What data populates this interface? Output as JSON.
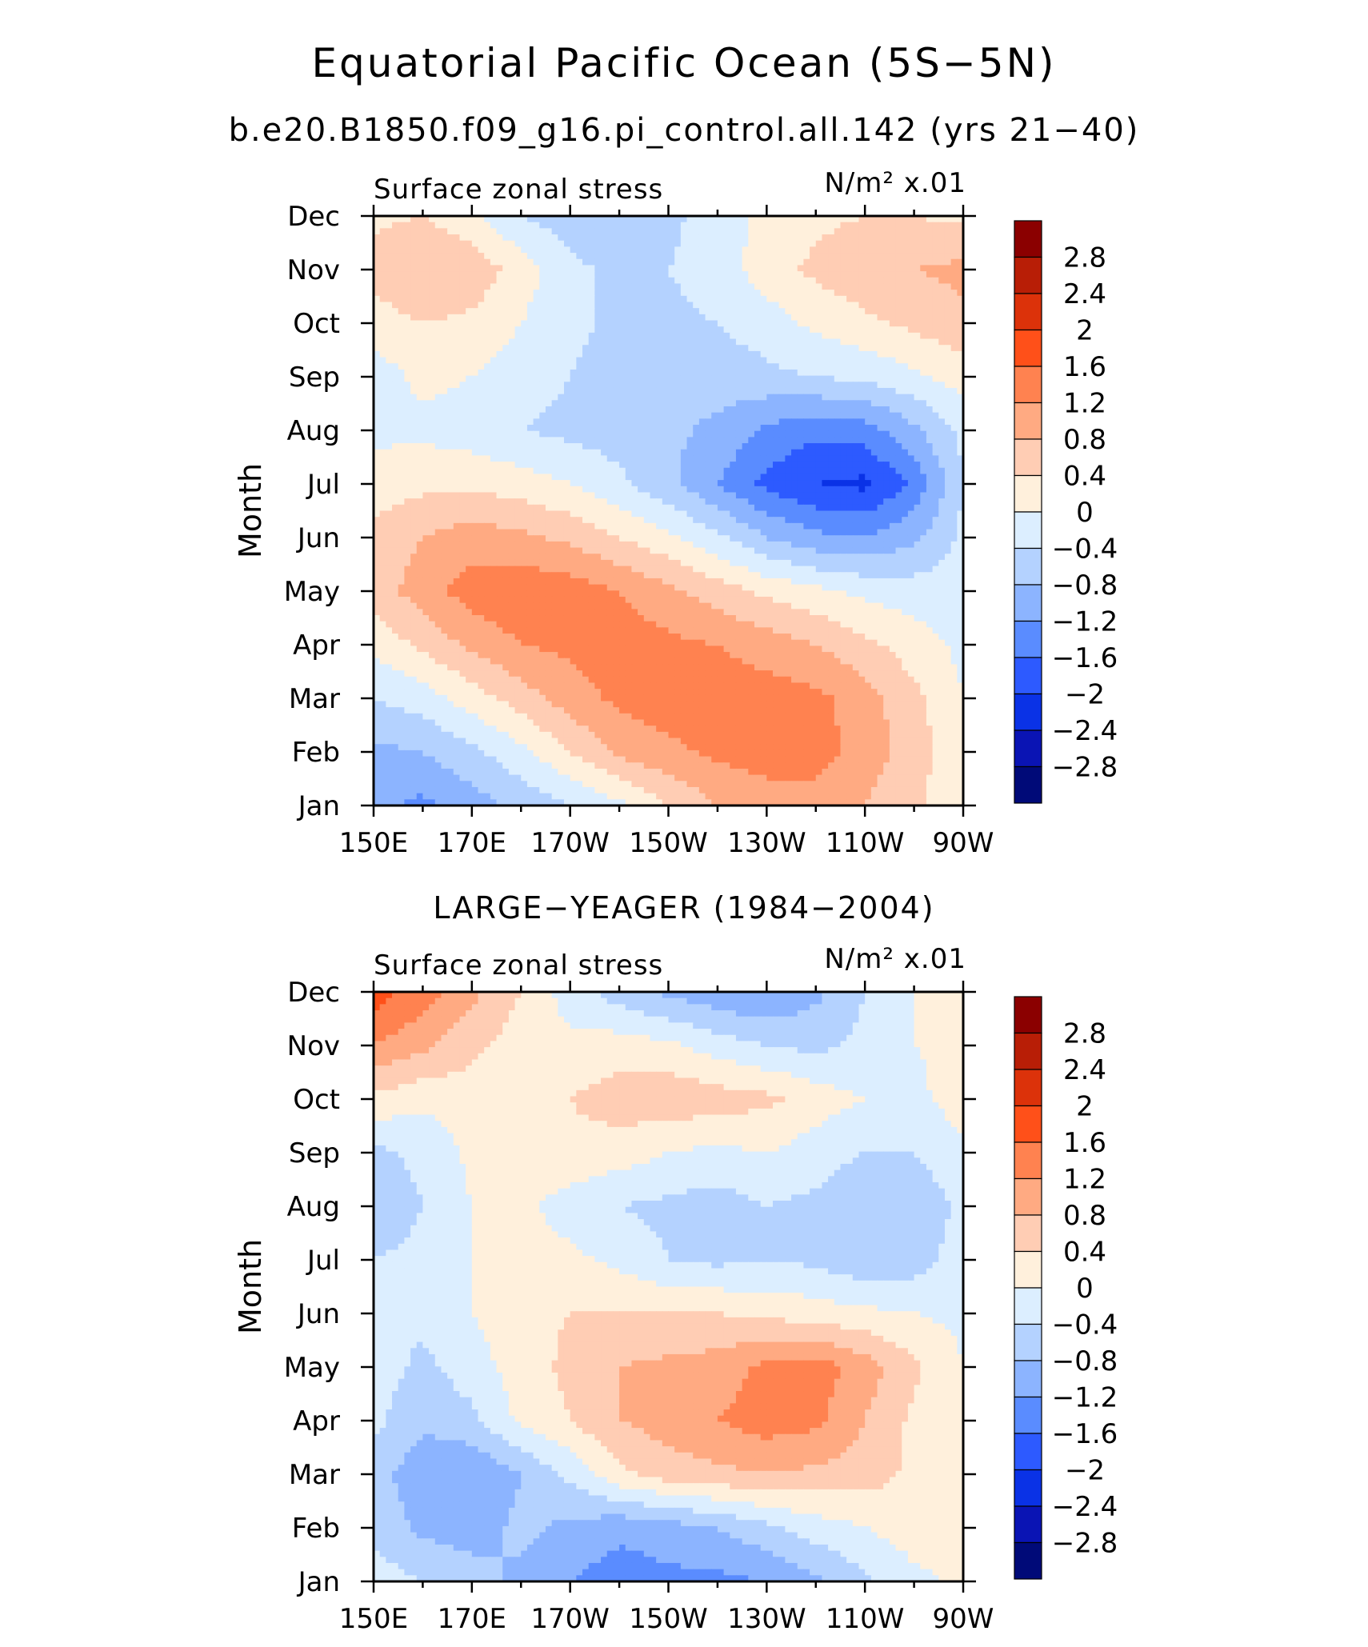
{
  "figure": {
    "title": "Equatorial Pacific Ocean (5S−5N)",
    "subtitle": "b.e20.B1850.f09_g16.pi_control.all.142 (yrs 21−40)"
  },
  "colorbar": {
    "levels": [
      "2.8",
      "2.4",
      "2",
      "1.6",
      "1.2",
      "0.8",
      "0.4",
      "0",
      "−0.4",
      "−0.8",
      "−1.2",
      "−1.6",
      "−2",
      "−2.4",
      "−2.8"
    ],
    "colors": [
      "#8b0000",
      "#b81e06",
      "#dc320a",
      "#ff5019",
      "#ff8250",
      "#ffaa82",
      "#ffcdb4",
      "#fff0dc",
      "#dceeff",
      "#b4d2ff",
      "#8cb4ff",
      "#5a8cff",
      "#2d5aff",
      "#0a32e6",
      "#0a14b4",
      "#000a78"
    ]
  },
  "chart_data": [
    {
      "type": "heatmap",
      "panel_title": "",
      "left_label": "Surface zonal stress",
      "right_label": "N/m² x.01",
      "xlabel": "",
      "ylabel": "Month",
      "xticks": [
        "150E",
        "170E",
        "170W",
        "150W",
        "130W",
        "110W",
        "90W"
      ],
      "yticks": [
        "Jan",
        "Feb",
        "Mar",
        "Apr",
        "May",
        "Jun",
        "Jul",
        "Aug",
        "Sep",
        "Oct",
        "Nov",
        "Dec"
      ],
      "x_deg_east": [
        150,
        160,
        170,
        180,
        190,
        200,
        210,
        220,
        230,
        240,
        250,
        260,
        270
      ],
      "months": [
        "Jan",
        "Feb",
        "Mar",
        "Apr",
        "May",
        "Jun",
        "Jul",
        "Aug",
        "Sep",
        "Oct",
        "Nov",
        "Dec"
      ],
      "values": [
        [
          -1.1,
          -1.3,
          -1.0,
          -0.7,
          -0.4,
          -0.1,
          0.4,
          0.8,
          1.0,
          1.0,
          0.8,
          0.5,
          0.0
        ],
        [
          -0.9,
          -0.8,
          -0.5,
          -0.1,
          0.4,
          0.9,
          1.1,
          1.3,
          1.4,
          1.4,
          1.0,
          0.6,
          0.1
        ],
        [
          -0.4,
          -0.2,
          0.2,
          0.6,
          1.0,
          1.3,
          1.4,
          1.4,
          1.4,
          1.3,
          1.0,
          0.5,
          0.0
        ],
        [
          0.1,
          0.5,
          0.9,
          1.2,
          1.3,
          1.4,
          1.3,
          1.2,
          1.0,
          0.8,
          0.5,
          0.2,
          -0.1
        ],
        [
          0.6,
          1.0,
          1.4,
          1.5,
          1.4,
          1.2,
          0.9,
          0.6,
          0.3,
          0.1,
          -0.1,
          -0.2,
          -0.2
        ],
        [
          0.5,
          0.8,
          1.0,
          0.9,
          0.7,
          0.4,
          0.1,
          -0.3,
          -0.8,
          -1.1,
          -1.2,
          -0.9,
          -0.3
        ],
        [
          0.2,
          0.3,
          0.3,
          0.2,
          0.0,
          -0.3,
          -0.7,
          -1.2,
          -1.7,
          -2.0,
          -2.1,
          -1.5,
          -0.4
        ],
        [
          -0.1,
          -0.1,
          -0.2,
          -0.4,
          -0.5,
          -0.6,
          -0.7,
          -0.9,
          -1.3,
          -1.5,
          -1.4,
          -0.9,
          -0.3
        ],
        [
          -0.2,
          0.1,
          0.0,
          -0.2,
          -0.4,
          -0.6,
          -0.7,
          -0.6,
          -0.5,
          -0.4,
          -0.3,
          -0.1,
          0.2
        ],
        [
          0.2,
          0.4,
          0.3,
          0.0,
          -0.3,
          -0.5,
          -0.5,
          -0.4,
          -0.2,
          0.1,
          0.3,
          0.5,
          0.7
        ],
        [
          0.6,
          0.8,
          0.7,
          0.2,
          -0.3,
          -0.5,
          -0.4,
          -0.2,
          0.2,
          0.5,
          0.7,
          0.8,
          0.9
        ],
        [
          0.3,
          0.4,
          0.1,
          -0.4,
          -0.6,
          -0.7,
          -0.5,
          -0.2,
          0.1,
          0.3,
          0.4,
          0.4,
          0.3
        ]
      ]
    },
    {
      "type": "heatmap",
      "panel_title": "LARGE−YEAGER (1984−2004)",
      "left_label": "Surface zonal stress",
      "right_label": "N/m² x.01",
      "xlabel": "",
      "ylabel": "Month",
      "xticks": [
        "150E",
        "170E",
        "170W",
        "150W",
        "130W",
        "110W",
        "90W"
      ],
      "yticks": [
        "Jan",
        "Feb",
        "Mar",
        "Apr",
        "May",
        "Jun",
        "Jul",
        "Aug",
        "Sep",
        "Oct",
        "Nov",
        "Dec"
      ],
      "x_deg_east": [
        150,
        160,
        170,
        180,
        190,
        200,
        210,
        220,
        230,
        240,
        250,
        260,
        270
      ],
      "months": [
        "Jan",
        "Feb",
        "Mar",
        "Apr",
        "May",
        "Jun",
        "Jul",
        "Aug",
        "Sep",
        "Oct",
        "Nov",
        "Dec"
      ],
      "values": [
        [
          -0.2,
          -0.4,
          -0.6,
          -0.9,
          -1.2,
          -1.4,
          -1.3,
          -1.3,
          -1.2,
          -0.9,
          -0.5,
          -0.1,
          0.1
        ],
        [
          -0.5,
          -0.9,
          -1.0,
          -0.7,
          -0.9,
          -1.1,
          -1.0,
          -0.8,
          -0.5,
          -0.2,
          0.0,
          0.2,
          0.1
        ],
        [
          -0.6,
          -1.1,
          -1.2,
          -0.8,
          -0.3,
          0.3,
          0.6,
          0.7,
          0.8,
          0.7,
          0.6,
          0.3,
          0.0
        ],
        [
          -0.3,
          -0.7,
          -0.5,
          0.1,
          0.4,
          0.8,
          1.0,
          1.2,
          1.4,
          1.3,
          0.8,
          0.3,
          0.0
        ],
        [
          -0.2,
          -0.5,
          -0.2,
          0.2,
          0.5,
          0.8,
          0.9,
          1.0,
          1.3,
          1.4,
          1.0,
          0.5,
          0.0
        ],
        [
          -0.3,
          -0.3,
          0.0,
          0.3,
          0.4,
          0.4,
          0.4,
          0.4,
          0.3,
          0.2,
          0.1,
          0.0,
          -0.1
        ],
        [
          -0.4,
          -0.3,
          0.0,
          0.2,
          0.1,
          -0.1,
          -0.4,
          -0.5,
          -0.4,
          -0.5,
          -0.7,
          -0.6,
          -0.2
        ],
        [
          -0.7,
          -0.4,
          0.0,
          0.1,
          -0.2,
          -0.4,
          -0.5,
          -0.6,
          -0.4,
          -0.5,
          -0.8,
          -0.7,
          -0.3
        ],
        [
          -0.5,
          -0.3,
          0.1,
          0.3,
          0.3,
          0.2,
          0.0,
          -0.1,
          0.0,
          -0.2,
          -0.4,
          -0.4,
          -0.1
        ],
        [
          0.3,
          0.1,
          0.2,
          0.3,
          0.4,
          0.6,
          0.7,
          0.6,
          0.5,
          0.2,
          0.0,
          -0.1,
          0.2
        ],
        [
          1.2,
          0.9,
          0.5,
          0.2,
          0.1,
          0.2,
          0.1,
          -0.2,
          -0.4,
          -0.5,
          -0.3,
          0.0,
          0.1
        ],
        [
          1.8,
          1.4,
          0.9,
          0.4,
          -0.2,
          -0.6,
          -0.9,
          -1.1,
          -1.2,
          -0.9,
          -0.4,
          0.0,
          0.1
        ]
      ]
    }
  ]
}
